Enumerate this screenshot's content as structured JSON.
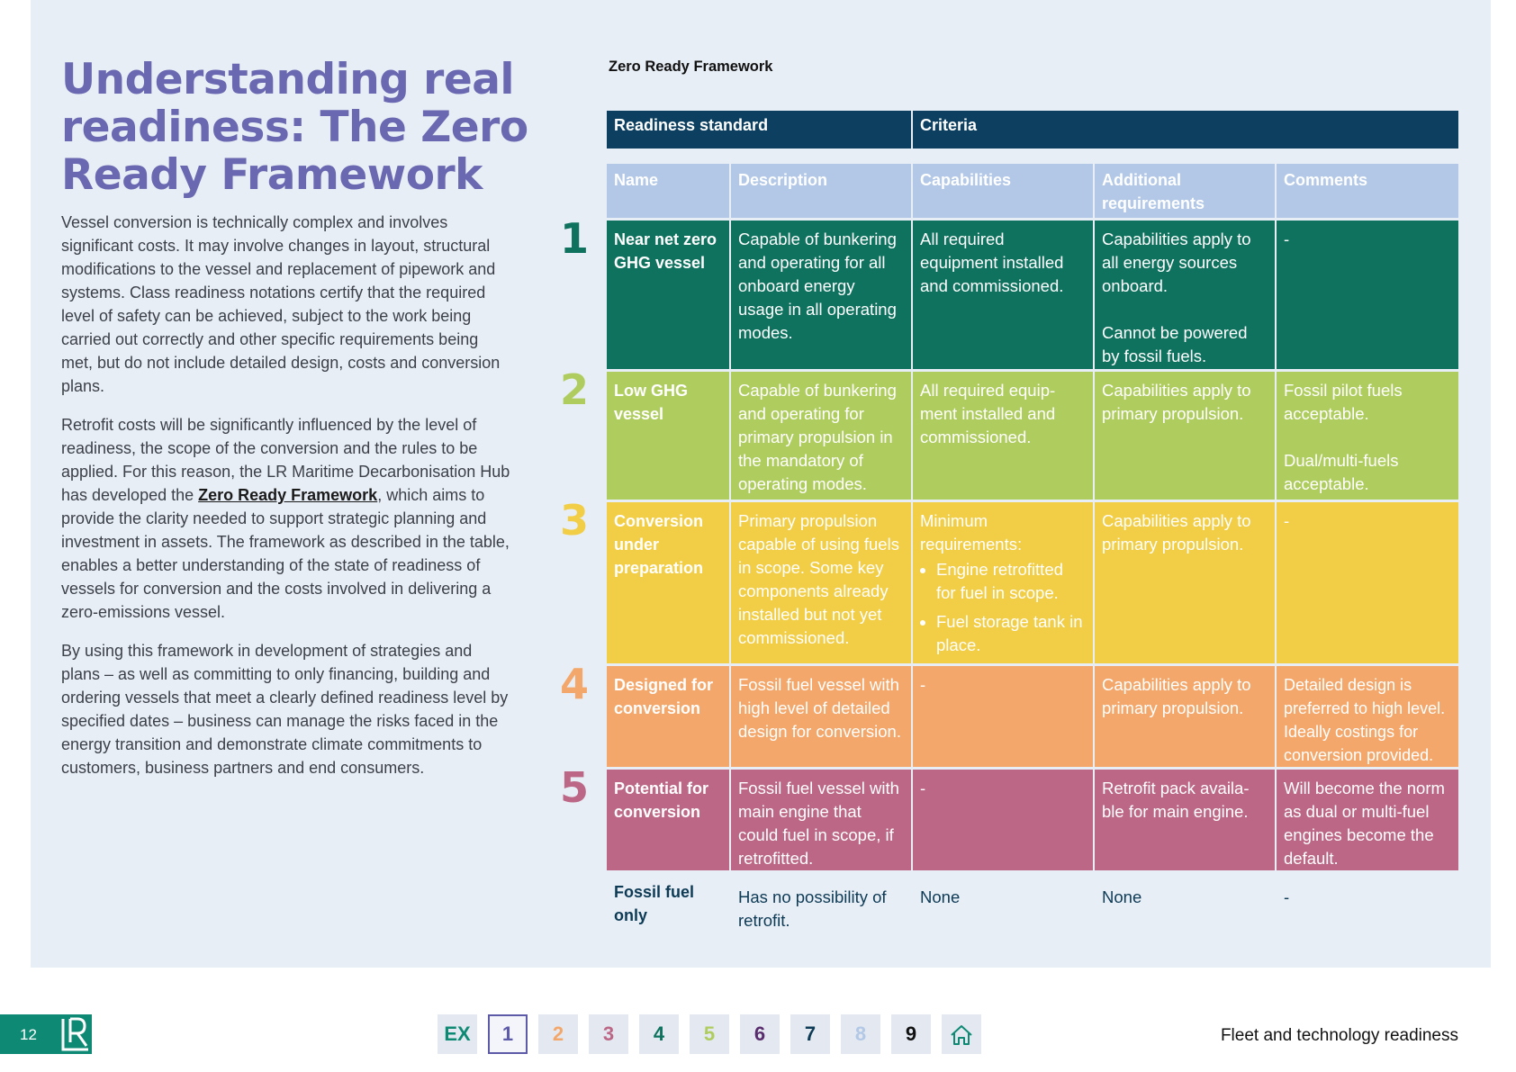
{
  "page": {
    "title": "Understanding real readiness: The Zero Ready Framework",
    "paragraphs": {
      "p1": "Vessel conversion is technically complex and involves significant costs. It may involve changes in layout, structural modifications to the vessel and replacement of pipework and systems. Class readiness notations certify that the required level of safety can be achieved, subject to the work being carried out correctly and other specific requirements being met, but do not include detailed design, costs and conversion plans.",
      "p2_before": "Retrofit costs will be significantly influenced by the level of readiness, the scope of the conversion and the rules to be applied. For this reason, the LR Maritime Decarbonisation Hub has developed the ",
      "p2_link": "Zero Ready Framework",
      "p2_after": ", which aims to provide the clarity needed to support strategic planning and investment in assets. The framework as described in the table, enables a better understanding of the state of readiness of vessels for conversion and the costs involved in delivering a zero-emissions vessel.",
      "p3": "By using this framework in development of strategies and plans – as well as committing to only financing, building and ordering vessels that meet a clearly defined readiness level by specified dates – business can manage the risks faced in the energy transition and demonstrate climate commitments to customers, business partners and end consumers."
    }
  },
  "table": {
    "caption": "Zero Ready Framework",
    "group_headers": {
      "standard": "Readiness standard",
      "criteria": "Criteria"
    },
    "columns": {
      "name": "Name",
      "description": "Description",
      "capabilities": "Capabilities",
      "additional": "Additional requirements",
      "comments": "Comments"
    },
    "rows": [
      {
        "num": "1",
        "name": "Near net zero GHG vessel",
        "description": "Capable of bunkering and operating for all onboard energy usage in all operating modes.",
        "capabilities": "All required equipment installed and commissioned.",
        "additional_1": "Capabilities apply to all energy sources onboard.",
        "additional_2": "Cannot be powered by fossil fuels.",
        "comments": "-"
      },
      {
        "num": "2",
        "name": "Low GHG vessel",
        "description": "Capable of bunkering and operating for primary propulsion in the mandatory of operating modes.",
        "capabilities": "All required equip-ment installed and  commissioned.",
        "additional": "Capabilities apply to primary propulsion.",
        "comments_1": "Fossil pilot fuels acceptable.",
        "comments_2": "Dual/multi-fuels acceptable."
      },
      {
        "num": "3",
        "name": "Conversion under preparation",
        "description": "Primary propulsion capable of using fuels in scope. Some key components already installed but not yet commissioned.",
        "capabilities_intro": "Minimum requirements:",
        "capabilities_item1": "Engine retrofitted for fuel in scope.",
        "capabilities_item2": "Fuel storage tank in place.",
        "additional": "Capabilities apply to primary propulsion.",
        "comments": "-"
      },
      {
        "num": "4",
        "name": "Designed for conversion",
        "description": "Fossil fuel vessel with high level of detailed design for conversion.",
        "capabilities": "-",
        "additional": "Capabilities apply to primary propulsion.",
        "comments": "Detailed design is preferred to high level. Ideally costings for conversion provided."
      },
      {
        "num": "5",
        "name": "Potential for conversion",
        "description": "Fossil fuel vessel with main engine that could fuel in scope, if retrofitted.",
        "capabilities": "-",
        "additional": "Retrofit pack availa-ble for main engine.",
        "comments": "Will become the norm as dual or multi-fuel engines become the default."
      },
      {
        "name": "Fossil fuel only",
        "description": "Has no possibility of retrofit.",
        "capabilities": "None",
        "additional": "None",
        "comments": "-"
      }
    ]
  },
  "footer": {
    "page_number": "12",
    "nav": [
      "EX",
      "1",
      "2",
      "3",
      "4",
      "5",
      "6",
      "7",
      "8",
      "9"
    ],
    "home_icon": "home-icon",
    "section_title": "Fleet and technology readiness"
  },
  "colors": {
    "title": "#6a68b0",
    "dark_header": "#0d4060",
    "column_header": "#b2c8e6",
    "level1": "#0e725e",
    "level2": "#afcd5f",
    "level3": "#f2cd46",
    "level4": "#f4a76a",
    "level5": "#bc6785",
    "brand_teal": "#0e8a74"
  }
}
